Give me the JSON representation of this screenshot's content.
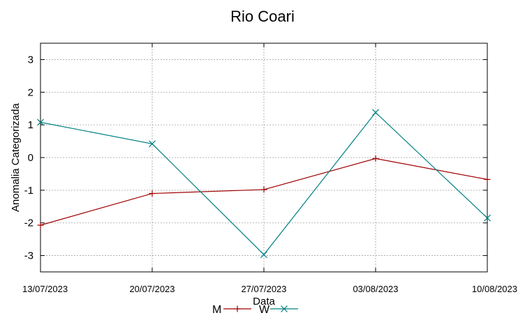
{
  "chart_data": {
    "type": "line",
    "title": "Rio Coari",
    "xlabel": "Data",
    "ylabel": "Anomalia Categorizada",
    "categories": [
      "13/07/2023",
      "20/07/2023",
      "27/07/2023",
      "03/08/2023",
      "10/08/2023"
    ],
    "ylim": [
      -3.5,
      3.5
    ],
    "yticks": [
      -3,
      -2,
      -1,
      0,
      1,
      2,
      3
    ],
    "grid": true,
    "legend_position": "bottom-center",
    "series": [
      {
        "name": "M",
        "color": "#a00000",
        "marker": "plus",
        "values": [
          -2.07,
          -1.1,
          -0.98,
          -0.03,
          -0.67
        ]
      },
      {
        "name": "W",
        "color": "#008080",
        "marker": "cross",
        "values": [
          1.08,
          0.42,
          -2.97,
          1.38,
          -1.85
        ]
      }
    ]
  }
}
